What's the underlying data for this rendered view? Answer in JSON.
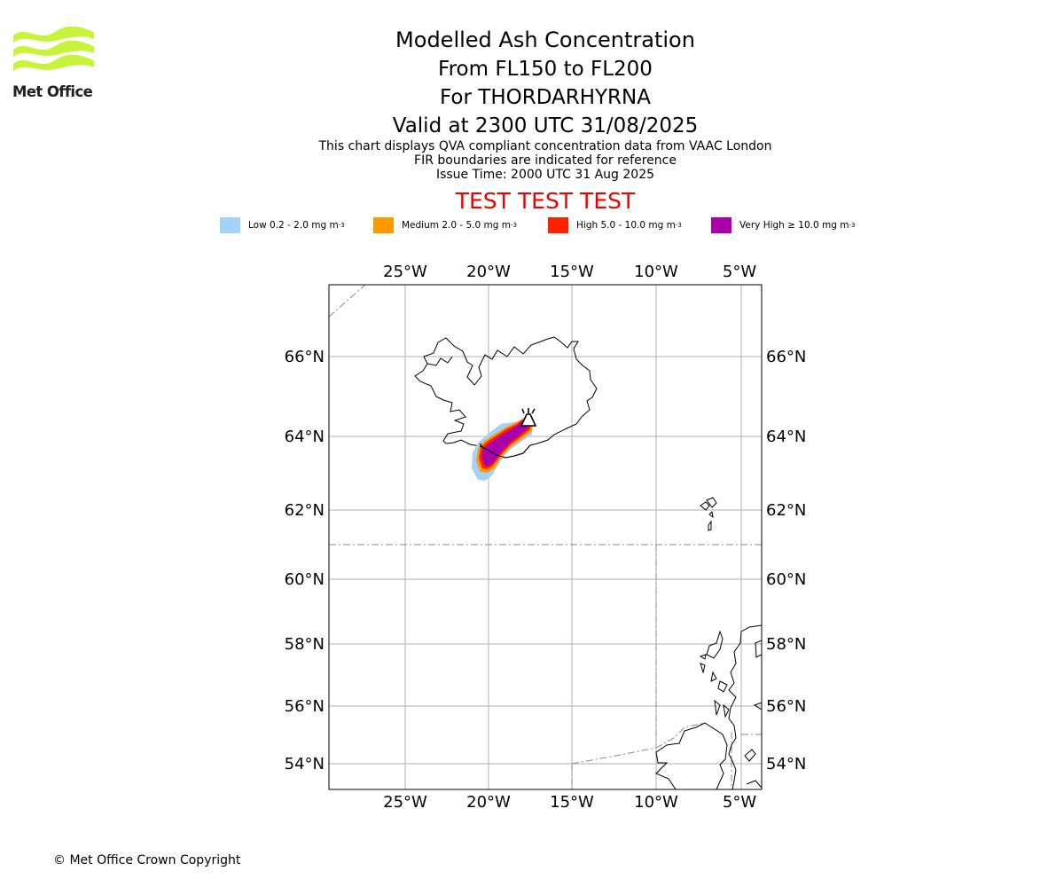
{
  "logo": {
    "text": "Met Office",
    "color": "#c6f43a"
  },
  "header": {
    "title": "Modelled Ash Concentration",
    "levels": "From FL150 to FL200",
    "volcano": "For THORDARHYRNA",
    "valid": "Valid at 2300 UTC 31/08/2025"
  },
  "subtitle": {
    "line1": "This chart displays QVA compliant concentration data from VAAC London",
    "line2": "FIR boundaries are indicated for reference",
    "line3": "Issue Time: 2000 UTC 31 Aug 2025"
  },
  "banner": {
    "text": "TEST TEST TEST",
    "color": "#ee0000"
  },
  "legend": [
    {
      "label": "Low 0.2 - 2.0 mg m",
      "exp": "-3",
      "color": "#a3d3f7"
    },
    {
      "label": "Medium 2.0 - 5.0 mg m",
      "exp": "-3",
      "color": "#ff9900"
    },
    {
      "label": "High 5.0 - 10.0 mg m",
      "exp": "-3",
      "color": "#ff2200"
    },
    {
      "label": "Very High ≥ 10.0 mg m",
      "exp": "-3",
      "color": "#aa00aa"
    }
  ],
  "map": {
    "lon_ticks": [
      "25°W",
      "20°W",
      "15°W",
      "10°W",
      "5°W"
    ],
    "lat_ticks": [
      "66°N",
      "64°N",
      "62°N",
      "60°N",
      "58°N",
      "56°N",
      "54°N"
    ]
  },
  "footer": {
    "copyright": "© Met Office Crown Copyright"
  }
}
